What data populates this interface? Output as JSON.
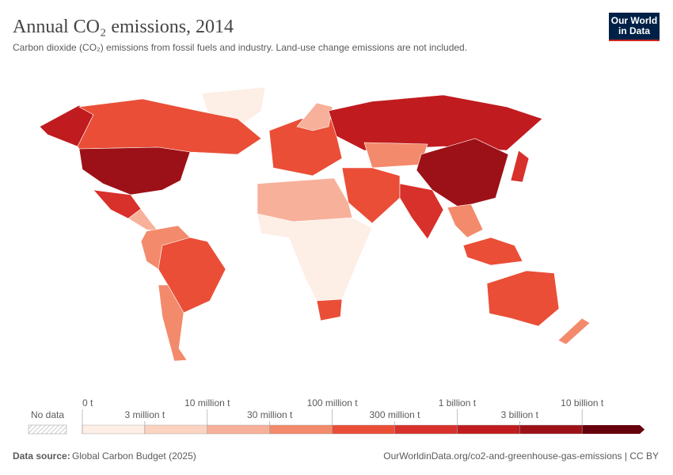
{
  "header": {
    "title": "Annual CO₂ emissions, 2014",
    "subtitle": "Carbon dioxide (CO₂) emissions from fossil fuels and industry. Land-use change emissions are not included.",
    "logo": [
      "Our World",
      "in Data"
    ]
  },
  "legend": {
    "no_data": "No data",
    "labels": [
      "0 t",
      "3 million t",
      "10 million t",
      "30 million t",
      "100 million t",
      "300 million t",
      "1 billion t",
      "3 billion t",
      "10 billion t"
    ],
    "colors": [
      "#fdeee6",
      "#fbd3c0",
      "#f7b09a",
      "#f38a6b",
      "#ea4e37",
      "#d8302a",
      "#c01b1e",
      "#9c1117",
      "#67000d"
    ]
  },
  "footer": {
    "source_label": "Data source:",
    "source": "Global Carbon Budget (2025)",
    "url": "OurWorldinData.org/co2-and-greenhouse-gas-emissions | CC BY"
  }
}
